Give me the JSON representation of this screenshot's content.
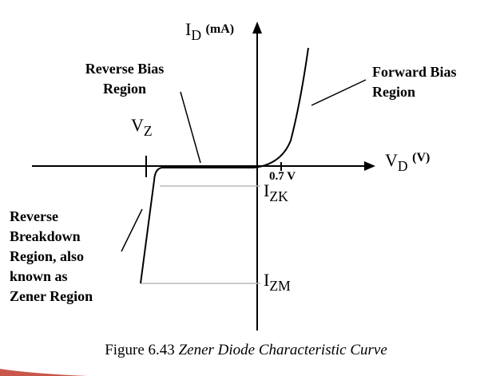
{
  "axes": {
    "y_label_main": "I",
    "y_label_sub": "D",
    "y_label_unit": "(mA)",
    "x_label_main": "V",
    "x_label_sub": "D",
    "x_label_unit": "(V)"
  },
  "markers": {
    "vz_main": "V",
    "vz_sub": "Z",
    "forward_voltage": "0.7 V",
    "izk_main": "I",
    "izk_sub": "ZK",
    "izm_main": "I",
    "izm_sub": "ZM"
  },
  "regions": {
    "reverse_bias": [
      "Reverse Bias",
      "Region"
    ],
    "forward_bias": [
      "Forward Bias",
      "Region"
    ],
    "breakdown": [
      "Reverse",
      "Breakdown",
      "Region, also",
      "known as",
      "Zener Region"
    ]
  },
  "caption": {
    "number": "Figure 6.43",
    "title": "Zener Diode Characteristic Curve"
  },
  "colors": {
    "ink": "#000000",
    "guide_line": "#b8b8b8",
    "background": "#ffffff",
    "corner_accent": "#c0392b"
  }
}
